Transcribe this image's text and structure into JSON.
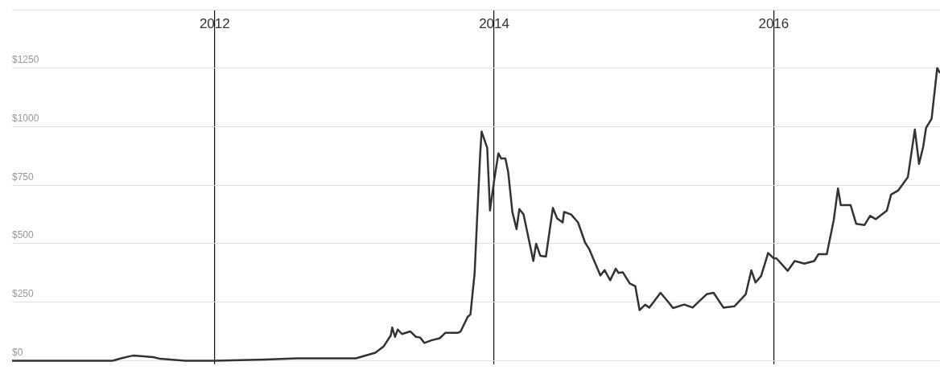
{
  "chart_data": {
    "type": "line",
    "color": "#333333",
    "grid": true,
    "x": [
      2010.55,
      2011.27,
      2011.33,
      2011.4,
      2011.42,
      2011.56,
      2011.61,
      2011.79,
      2012.0,
      2012.36,
      2012.59,
      2012.77,
      2013.01,
      2013.15,
      2013.21,
      2013.26,
      2013.27,
      2013.29,
      2013.31,
      2013.34,
      2013.4,
      2013.44,
      2013.47,
      2013.5,
      2013.55,
      2013.61,
      2013.65,
      2013.74,
      2013.76,
      2013.81,
      2013.83,
      2013.86,
      2013.88,
      2013.9,
      2013.91,
      2013.95,
      2013.97,
      2014.0,
      2014.03,
      2014.05,
      2014.08,
      2014.1,
      2014.13,
      2014.16,
      2014.18,
      2014.21,
      2014.28,
      2014.3,
      2014.33,
      2014.37,
      2014.42,
      2014.45,
      2014.49,
      2014.5,
      2014.55,
      2014.6,
      2014.65,
      2014.68,
      2014.76,
      2014.79,
      2014.83,
      2014.87,
      2014.89,
      2014.92,
      2014.97,
      2015.01,
      2015.04,
      2015.08,
      2015.11,
      2015.19,
      2015.24,
      2015.28,
      2015.36,
      2015.42,
      2015.46,
      2015.52,
      2015.57,
      2015.64,
      2015.72,
      2015.8,
      2015.84,
      2015.87,
      2015.91,
      2015.96,
      2016.0,
      2016.02,
      2016.1,
      2016.15,
      2016.22,
      2016.29,
      2016.32,
      2016.38,
      2016.43,
      2016.46,
      2016.48,
      2016.55,
      2016.59,
      2016.65,
      2016.69,
      2016.73,
      2016.81,
      2016.84,
      2016.89,
      2016.96,
      2017.01,
      2017.04,
      2017.07,
      2017.09,
      2017.13,
      2017.17,
      2017.19
    ],
    "values": [
      0,
      0,
      10,
      20,
      22,
      15,
      8,
      0,
      0,
      5,
      10,
      10,
      10,
      34,
      62,
      108,
      142,
      102,
      133,
      114,
      125,
      102,
      99,
      76,
      87,
      96,
      119,
      119,
      125,
      187,
      198,
      375,
      636,
      886,
      979,
      909,
      642,
      772,
      886,
      864,
      864,
      807,
      636,
      562,
      648,
      625,
      426,
      500,
      448,
      445,
      653,
      608,
      591,
      636,
      625,
      591,
      505,
      477,
      364,
      387,
      344,
      393,
      375,
      378,
      330,
      318,
      216,
      239,
      227,
      290,
      255,
      225,
      240,
      227,
      250,
      284,
      290,
      227,
      233,
      284,
      386,
      334,
      362,
      460,
      438,
      437,
      384,
      426,
      415,
      426,
      455,
      455,
      602,
      736,
      665,
      665,
      585,
      580,
      619,
      605,
      642,
      710,
      727,
      784,
      988,
      841,
      915,
      994,
      1034,
      1250,
      1229
    ],
    "xlim": [
      2010.55,
      2017.19
    ],
    "xticks": [
      2012,
      2014,
      2016
    ],
    "ylim": [
      -15,
      1500
    ],
    "yticks": [
      {
        "value": 0,
        "label": "$0"
      },
      {
        "value": 250,
        "label": "$250"
      },
      {
        "value": 500,
        "label": "$500"
      },
      {
        "value": 750,
        "label": "$750"
      },
      {
        "value": 1000,
        "label": "$1000"
      },
      {
        "value": 1250,
        "label": "$1250"
      },
      {
        "value": 1500,
        "label": null
      }
    ]
  }
}
